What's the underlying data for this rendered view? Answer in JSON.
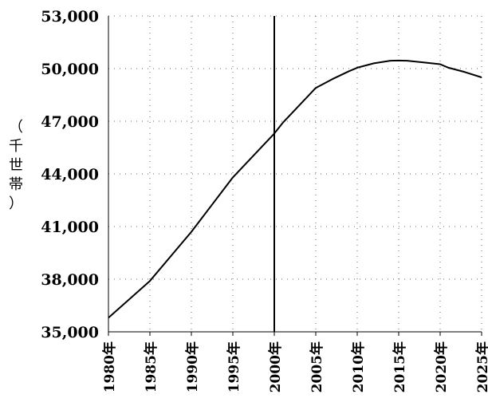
{
  "chart_data": {
    "type": "line",
    "ylabel": [
      "（",
      "千",
      "世",
      "帯",
      "）"
    ],
    "x_ticks": [
      "1980年",
      "1985年",
      "1990年",
      "1995年",
      "2000年",
      "2005年",
      "2010年",
      "2015年",
      "2020年",
      "2025年"
    ],
    "y_ticks": [
      "35,000",
      "38,000",
      "41,000",
      "44,000",
      "47,000",
      "50,000",
      "53,000"
    ],
    "ylim": [
      35000,
      53000
    ],
    "xlim": [
      1980,
      2025
    ],
    "grid": true,
    "vertical_marker_x": 2000,
    "series": [
      {
        "x": [
          1980,
          1985,
          1990,
          1995,
          1998,
          2000,
          2001,
          2003,
          2005,
          2007,
          2009,
          2010,
          2012,
          2014,
          2015,
          2016,
          2018,
          2020,
          2021,
          2023,
          2025
        ],
        "y": [
          35800,
          37900,
          40700,
          43800,
          45300,
          46300,
          46900,
          47900,
          48900,
          49400,
          49850,
          50050,
          50300,
          50450,
          50460,
          50450,
          50350,
          50250,
          50050,
          49800,
          49500
        ]
      }
    ]
  }
}
